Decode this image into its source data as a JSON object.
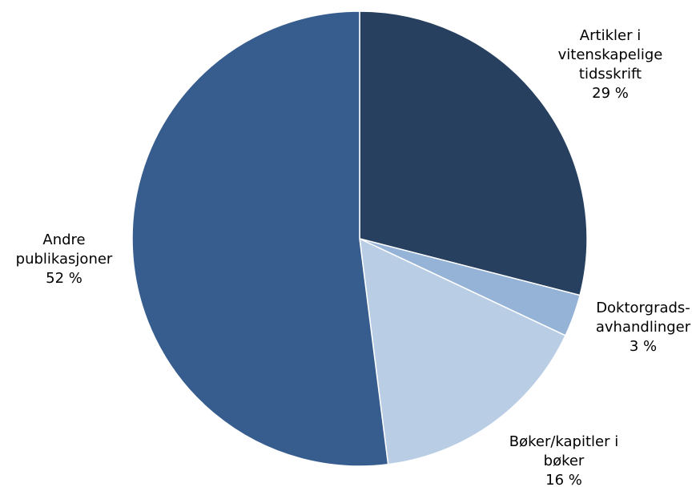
{
  "chart_data": {
    "type": "pie",
    "slices": [
      {
        "lines": [
          "Artikler i",
          "vitenskapelige",
          "tidsskrift"
        ],
        "value": 29,
        "value_label": "29 %",
        "color": "#27405f"
      },
      {
        "lines": [
          "Doktorgrads-",
          "avhandlinger"
        ],
        "value": 3,
        "value_label": "3 %",
        "color": "#95b3d7"
      },
      {
        "lines": [
          "Bøker/kapitler i",
          "bøker"
        ],
        "value": 16,
        "value_label": "16 %",
        "color": "#b9cde5"
      },
      {
        "lines": [
          "Andre",
          "publikasjoner"
        ],
        "value": 52,
        "value_label": "52 %",
        "color": "#365d8e"
      }
    ],
    "start_angle": "12 o'clock",
    "direction": "clockwise",
    "legend": "none"
  }
}
